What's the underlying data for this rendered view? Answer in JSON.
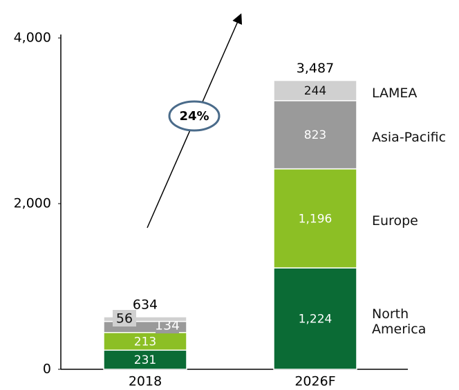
{
  "chart_data": {
    "type": "stacked_bar",
    "categories": [
      "2018",
      "2026F"
    ],
    "series": [
      {
        "name": "North America",
        "color": "#0b6b35",
        "values": [
          231,
          1224
        ],
        "value_labels": [
          "231",
          "1,224"
        ]
      },
      {
        "name": "Europe",
        "color": "#8cbf25",
        "values": [
          213,
          1196
        ],
        "value_labels": [
          "213",
          "1,196"
        ]
      },
      {
        "name": "Asia-Pacific",
        "color": "#9a9a9a",
        "values": [
          134,
          823
        ]
      },
      {
        "name": "LAMEA",
        "color": "#d0d0d0",
        "values": [
          56,
          244
        ]
      }
    ],
    "totals": [
      634,
      3487
    ],
    "totals_labels": [
      "634",
      "3,487"
    ],
    "annotation": "24%",
    "ylim": [
      0,
      4000
    ],
    "yticks": [
      0,
      {
        "value": 2000,
        "label": "2,000"
      },
      {
        "value": 4000,
        "label": "4,000"
      }
    ]
  }
}
